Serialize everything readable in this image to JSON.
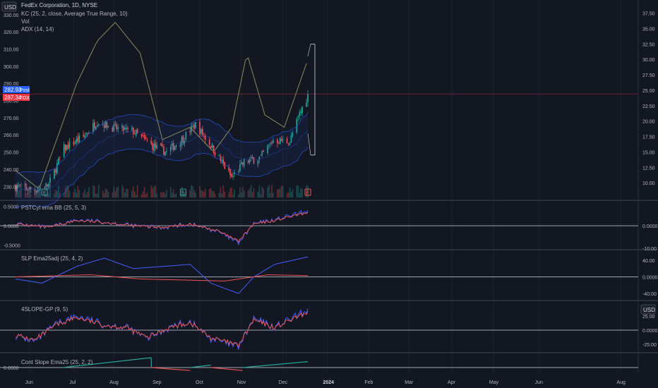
{
  "header": {
    "symbol_title": "FedEx Corporation, 1D, NYSE",
    "indicator_kc": "KC (25, 2, close, Average True Range, 10)",
    "indicator_vol": "Vol",
    "indicator_adx": "ADX (14, 14)",
    "currency_left": "USD",
    "currency_right": "USD"
  },
  "price_labels": [
    {
      "value": "282.93",
      "label": "Post",
      "color": "#2962ff"
    },
    {
      "value": "287.34",
      "label": "FDX",
      "color": "#f23645"
    }
  ],
  "colors": {
    "background": "#131722",
    "up": "#26a69a",
    "down": "#ef5350",
    "kc_band": "#2962ff",
    "adx": "#8a8a5a",
    "ind_blue": "#3f5fff",
    "ind_red": "#ef5350",
    "green_line": "#26a69a"
  },
  "chart_data": [
    {
      "type": "candlestick",
      "title": "FedEx Corporation, 1D, NYSE",
      "y_left_ticks": [
        "230.00",
        "240.00",
        "250.00",
        "260.00",
        "270.00",
        "280.00",
        "290.00",
        "300.00",
        "310.00",
        "320.00",
        "330.00"
      ],
      "y_right_ticks": [
        "10.00",
        "12.50",
        "15.00",
        "17.50",
        "20.00",
        "22.50",
        "25.00",
        "27.50",
        "30.00",
        "32.50",
        "35.00",
        "37.50"
      ],
      "ylim_left": [
        226,
        332
      ],
      "ylim_right": [
        8.3,
        37.8
      ],
      "x_labels": [
        "Jun",
        "Jul",
        "Aug",
        "Sep",
        "Oct",
        "Nov",
        "Dec",
        "2024",
        "Feb",
        "Mar",
        "Apr",
        "May",
        "Jun",
        "Aug"
      ],
      "close_keypoints": [
        {
          "date": "2023-05-22",
          "close": 230
        },
        {
          "date": "2023-06-05",
          "close": 228
        },
        {
          "date": "2023-06-15",
          "close": 231
        },
        {
          "date": "2023-06-26",
          "close": 252
        },
        {
          "date": "2023-07-10",
          "close": 259
        },
        {
          "date": "2023-07-20",
          "close": 268
        },
        {
          "date": "2023-08-01",
          "close": 264
        },
        {
          "date": "2023-08-15",
          "close": 262
        },
        {
          "date": "2023-08-28",
          "close": 254
        },
        {
          "date": "2023-09-08",
          "close": 250
        },
        {
          "date": "2023-09-20",
          "close": 258
        },
        {
          "date": "2023-09-29",
          "close": 266
        },
        {
          "date": "2023-10-10",
          "close": 254
        },
        {
          "date": "2023-10-25",
          "close": 235
        },
        {
          "date": "2023-11-03",
          "close": 244
        },
        {
          "date": "2023-11-15",
          "close": 247
        },
        {
          "date": "2023-11-24",
          "close": 257
        },
        {
          "date": "2023-12-06",
          "close": 256
        },
        {
          "date": "2023-12-13",
          "close": 272
        },
        {
          "date": "2023-12-19",
          "close": 283
        }
      ],
      "adx_keypoints": [
        {
          "date": "2023-05-22",
          "value": 12
        },
        {
          "date": "2023-06-08",
          "value": 9
        },
        {
          "date": "2023-07-05",
          "value": 26
        },
        {
          "date": "2023-07-20",
          "value": 33
        },
        {
          "date": "2023-08-02",
          "value": 36
        },
        {
          "date": "2023-08-20",
          "value": 31
        },
        {
          "date": "2023-09-05",
          "value": 17
        },
        {
          "date": "2023-09-25",
          "value": 19
        },
        {
          "date": "2023-10-12",
          "value": 15
        },
        {
          "date": "2023-10-25",
          "value": 19
        },
        {
          "date": "2023-11-05",
          "value": 31
        },
        {
          "date": "2023-11-18",
          "value": 21
        },
        {
          "date": "2023-12-02",
          "value": 19
        },
        {
          "date": "2023-12-19",
          "value": 30
        }
      ],
      "markers": [
        {
          "date": "2023-06-12",
          "label": "E"
        },
        {
          "date": "2023-09-20",
          "label": "E"
        },
        {
          "date": "2023-12-19",
          "label": "E"
        }
      ]
    },
    {
      "type": "line",
      "name": "PSTCyl ema BB (25, 5, 3)",
      "y_ticks_left": [
        "0.5000",
        "0.0000",
        "-0.5000"
      ],
      "y_ticks_right": [
        "0.0000",
        "-10.00"
      ],
      "ylim": [
        -0.55,
        0.55
      ],
      "series_keypoints": [
        {
          "date": "2023-05-22",
          "value": 0.05
        },
        {
          "date": "2023-06-15",
          "value": -0.05
        },
        {
          "date": "2023-07-05",
          "value": 0.15
        },
        {
          "date": "2023-07-25",
          "value": 0.1
        },
        {
          "date": "2023-08-15",
          "value": 0.0
        },
        {
          "date": "2023-09-05",
          "value": -0.05
        },
        {
          "date": "2023-09-25",
          "value": 0.05
        },
        {
          "date": "2023-10-15",
          "value": -0.15
        },
        {
          "date": "2023-10-30",
          "value": -0.45
        },
        {
          "date": "2023-11-10",
          "value": 0.05
        },
        {
          "date": "2023-11-25",
          "value": 0.15
        },
        {
          "date": "2023-12-19",
          "value": 0.38
        }
      ]
    },
    {
      "type": "line",
      "name": "SLP Ema25adj (25, 4, 2)",
      "y_ticks_right": [
        "40.00",
        "0.0000",
        "-40.00"
      ],
      "ylim": [
        -50,
        55
      ],
      "series": [
        {
          "color": "blue",
          "keypoints": [
            {
              "date": "2023-05-22",
              "value": -5
            },
            {
              "date": "2023-06-10",
              "value": -15
            },
            {
              "date": "2023-07-05",
              "value": 25
            },
            {
              "date": "2023-07-25",
              "value": 45
            },
            {
              "date": "2023-08-15",
              "value": 20
            },
            {
              "date": "2023-09-05",
              "value": 25
            },
            {
              "date": "2023-09-25",
              "value": 30
            },
            {
              "date": "2023-10-10",
              "value": -15
            },
            {
              "date": "2023-10-30",
              "value": -40
            },
            {
              "date": "2023-11-10",
              "value": 0
            },
            {
              "date": "2023-11-25",
              "value": 30
            },
            {
              "date": "2023-12-19",
              "value": 48
            }
          ]
        },
        {
          "color": "red",
          "keypoints": [
            {
              "date": "2023-05-22",
              "value": 0
            },
            {
              "date": "2023-07-15",
              "value": 5
            },
            {
              "date": "2023-08-20",
              "value": -5
            },
            {
              "date": "2023-10-20",
              "value": -10
            },
            {
              "date": "2023-11-20",
              "value": 5
            },
            {
              "date": "2023-12-19",
              "value": 3
            }
          ]
        }
      ]
    },
    {
      "type": "line",
      "name": "4SLOPE-GP (9, 5)",
      "y_ticks_right": [
        "25.00",
        "0.0000",
        "-25.00"
      ],
      "ylim": [
        -35,
        45
      ],
      "series_keypoints": [
        {
          "date": "2023-05-22",
          "value": -10
        },
        {
          "date": "2023-06-05",
          "value": -20
        },
        {
          "date": "2023-06-20",
          "value": 10
        },
        {
          "date": "2023-07-05",
          "value": 25
        },
        {
          "date": "2023-07-25",
          "value": 10
        },
        {
          "date": "2023-08-10",
          "value": 5
        },
        {
          "date": "2023-08-25",
          "value": -15
        },
        {
          "date": "2023-09-10",
          "value": 5
        },
        {
          "date": "2023-09-25",
          "value": 15
        },
        {
          "date": "2023-10-10",
          "value": -15
        },
        {
          "date": "2023-10-30",
          "value": -30
        },
        {
          "date": "2023-11-10",
          "value": 20
        },
        {
          "date": "2023-11-25",
          "value": 5
        },
        {
          "date": "2023-12-19",
          "value": 35
        }
      ]
    },
    {
      "type": "line",
      "name": "Cont Slope Ema25 (25, 2, 2)",
      "y_ticks_left": [
        "0.0000"
      ],
      "segments": [
        {
          "color": "green",
          "from": "2023-06-25",
          "to": "2023-08-28",
          "start": 0.0,
          "end": 1.0
        },
        {
          "color": "red",
          "from": "2023-08-28",
          "to": "2023-09-25",
          "start": 0.0,
          "end": -0.3
        },
        {
          "color": "green",
          "from": "2023-09-25",
          "to": "2023-10-10",
          "start": 0.0,
          "end": 0.25
        },
        {
          "color": "red",
          "from": "2023-10-10",
          "to": "2023-11-02",
          "start": 0.0,
          "end": -0.3
        },
        {
          "color": "green",
          "from": "2023-11-02",
          "to": "2023-12-19",
          "start": 0.0,
          "end": 0.6
        }
      ]
    }
  ]
}
